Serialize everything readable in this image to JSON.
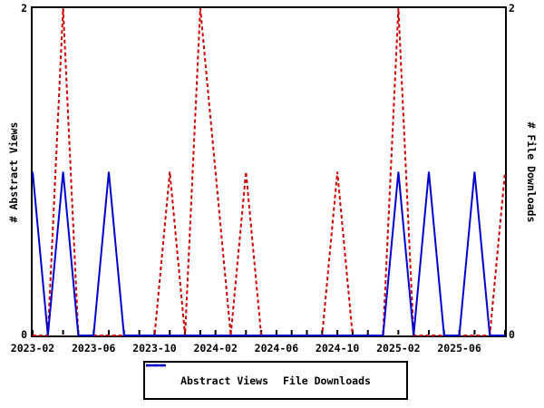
{
  "chart_data": {
    "type": "line",
    "x": [
      "2023-02",
      "2023-03",
      "2023-04",
      "2023-05",
      "2023-06",
      "2023-07",
      "2023-08",
      "2023-09",
      "2023-10",
      "2023-11",
      "2023-12",
      "2024-01",
      "2024-02",
      "2024-03",
      "2024-04",
      "2024-05",
      "2024-06",
      "2024-07",
      "2024-08",
      "2024-09",
      "2024-10",
      "2024-11",
      "2024-12",
      "2025-01",
      "2025-02",
      "2025-03",
      "2025-04",
      "2025-05",
      "2025-06",
      "2025-07",
      "2025-08",
      "2025-09"
    ],
    "series": [
      {
        "name": "Abstract Views",
        "color": "#cc0000",
        "dash": true,
        "values": [
          0,
          0,
          2,
          0,
          0,
          0,
          0,
          0,
          0,
          1,
          0,
          2,
          1,
          0,
          1,
          0,
          0,
          0,
          0,
          0,
          1,
          0,
          0,
          0,
          2,
          0,
          0,
          0,
          0,
          0,
          0,
          1
        ]
      },
      {
        "name": "File Downloads",
        "color": "#0000cc",
        "dash": false,
        "values": [
          1,
          0,
          1,
          0,
          0,
          1,
          0,
          0,
          0,
          0,
          0,
          0,
          0,
          0,
          0,
          0,
          0,
          0,
          0,
          0,
          0,
          0,
          0,
          0,
          1,
          0,
          1,
          0,
          0,
          1,
          0,
          0
        ]
      }
    ],
    "ylabel_left": "# Abstract Views",
    "ylabel_right": "# File Downloads",
    "ylim": [
      0,
      2
    ],
    "yticks": [
      0,
      2
    ],
    "xtick_labels": [
      "2023-02",
      "2023-06",
      "2023-10",
      "2024-02",
      "2024-06",
      "2024-10",
      "2025-02",
      "2025-06"
    ],
    "xtick_every": 4,
    "grid": false,
    "legend_position": "bottom-center"
  },
  "axis_labels": {
    "left_top": "2",
    "left_bottom": "0",
    "right_top": "2",
    "right_bottom": "0"
  }
}
